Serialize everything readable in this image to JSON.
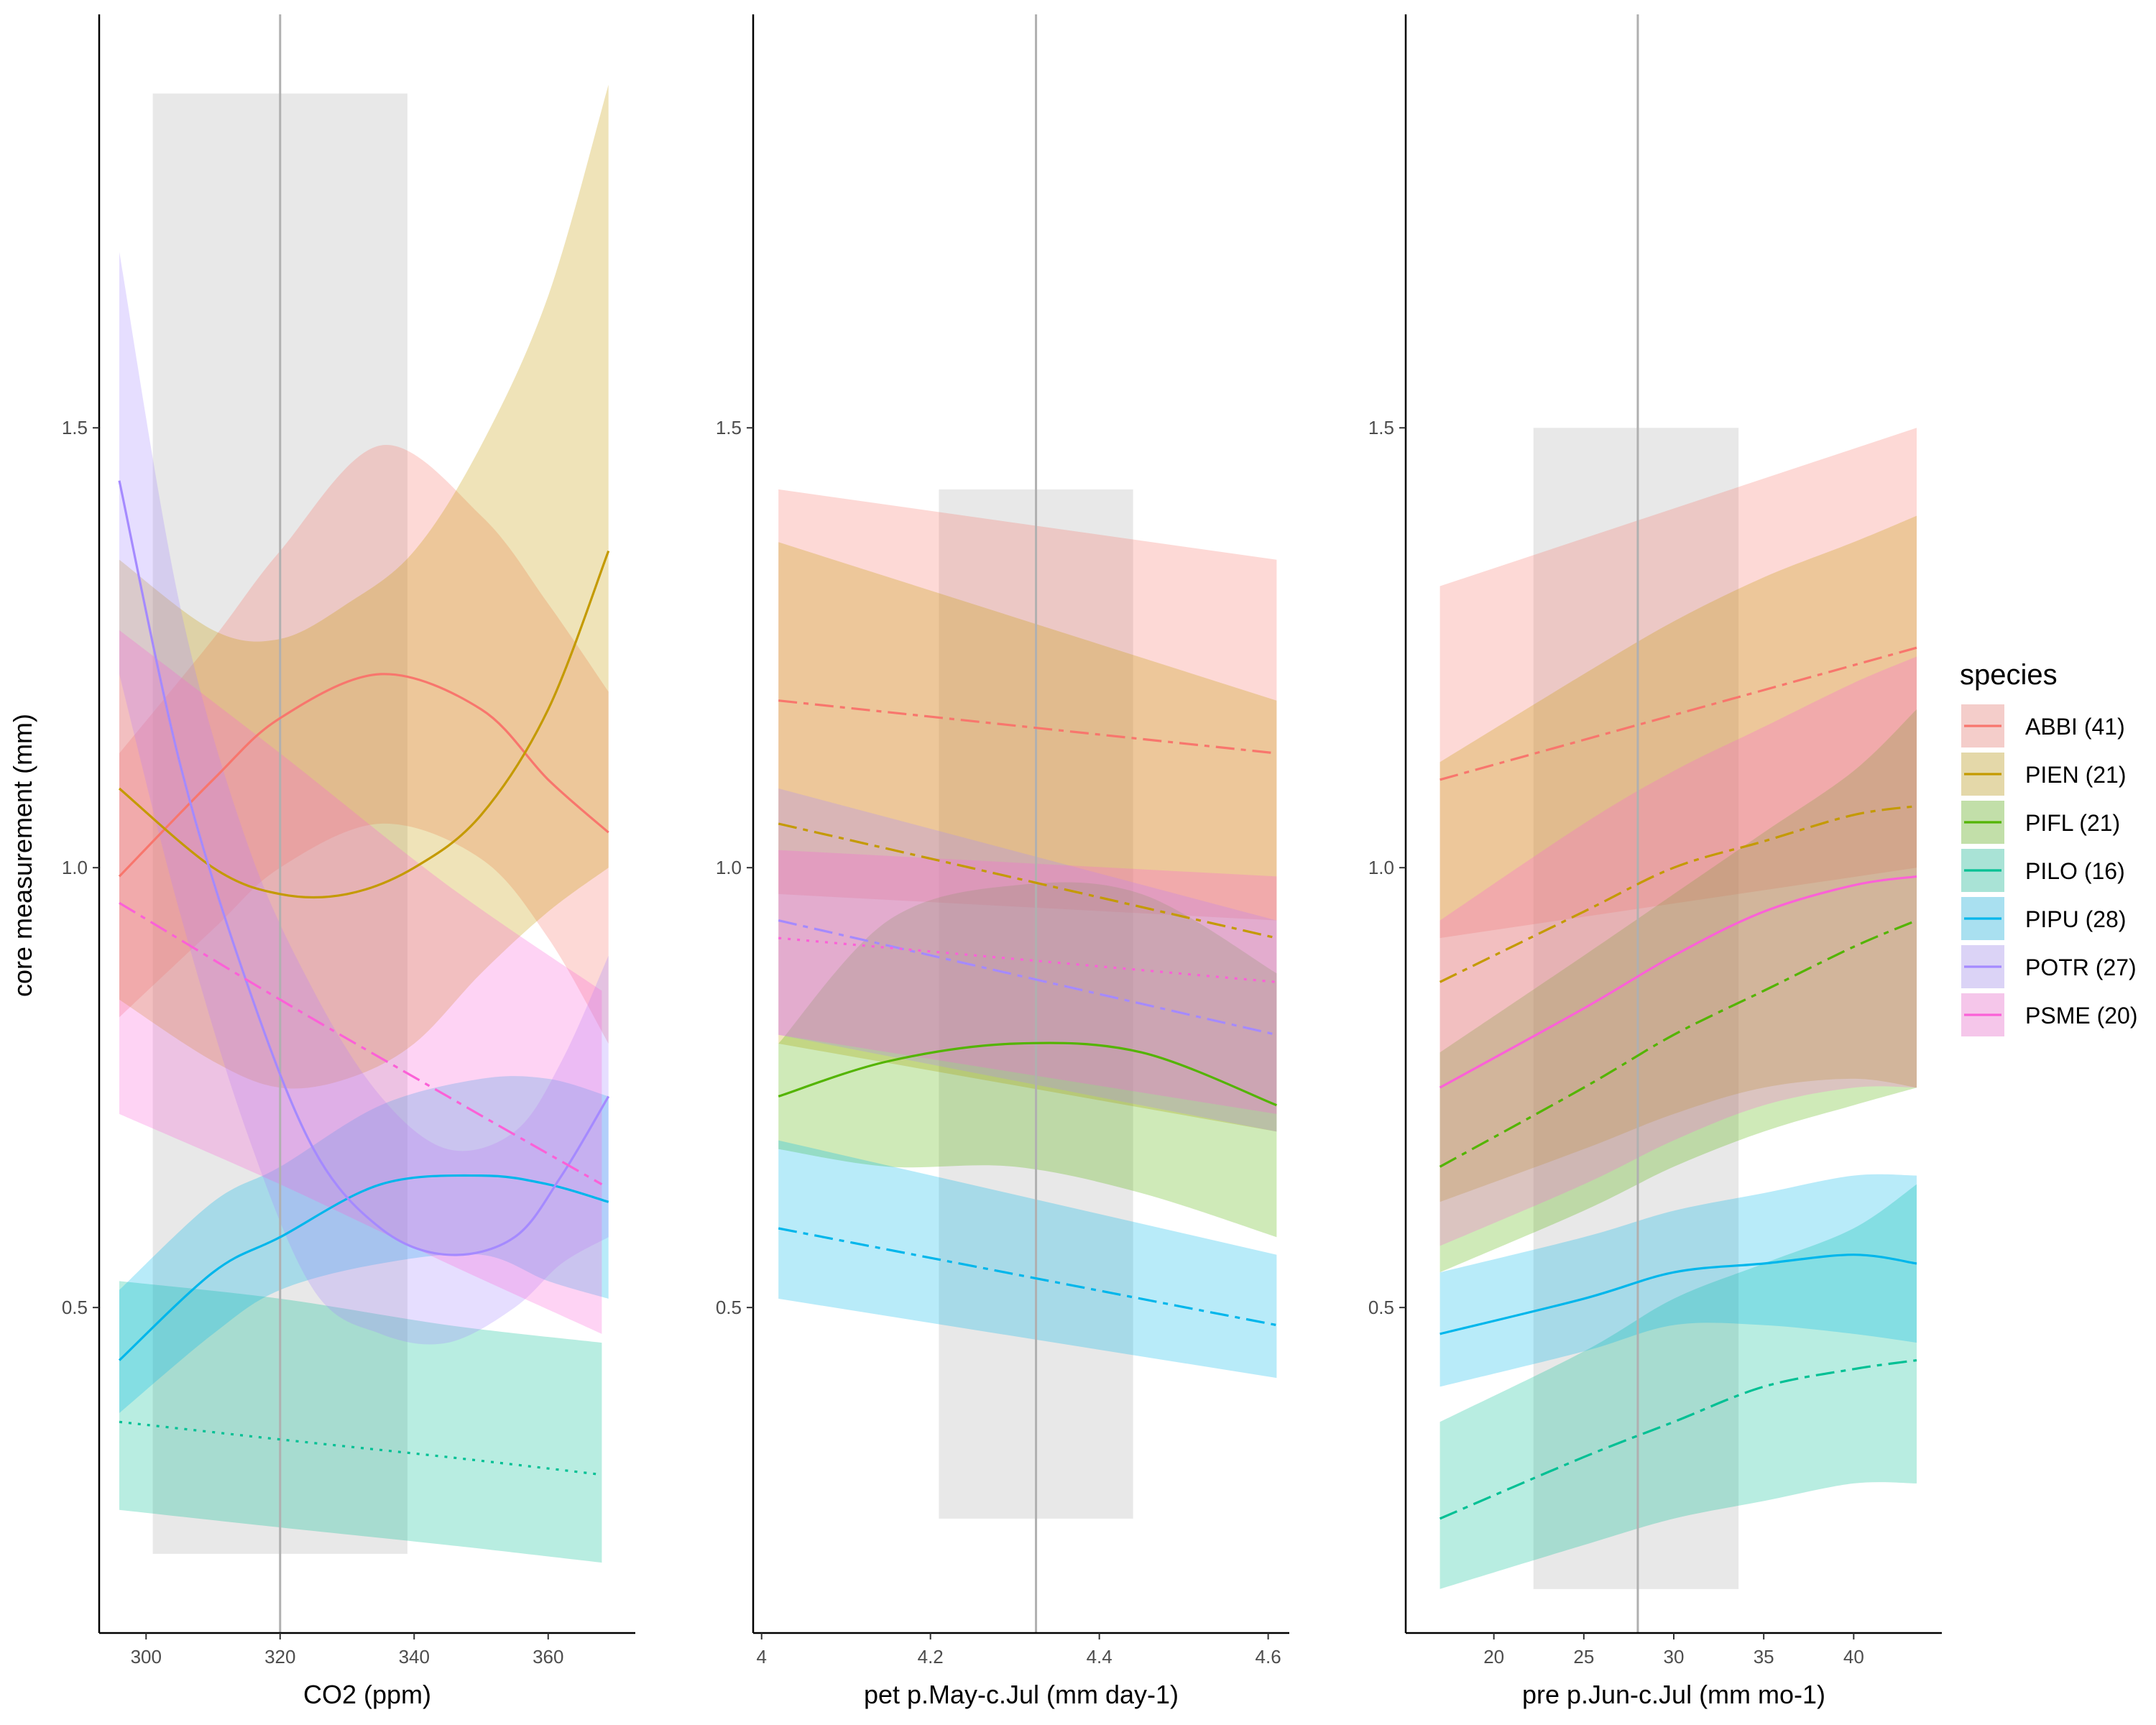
{
  "chart_data": {
    "type": "line",
    "ylabel": "core measurement (mm)",
    "legend": {
      "title": "species",
      "placement": "right",
      "entries": [
        {
          "label": "ABBI (41)",
          "color": "#F8766D"
        },
        {
          "label": "PIEN (21)",
          "color": "#C49A00"
        },
        {
          "label": "PIFL (21)",
          "color": "#53B400"
        },
        {
          "label": "PILO (16)",
          "color": "#00C094"
        },
        {
          "label": "PIPU (28)",
          "color": "#00B6EB"
        },
        {
          "label": "POTR (27)",
          "color": "#A58AFF"
        },
        {
          "label": "PSME (20)",
          "color": "#FB61D7"
        }
      ]
    },
    "panels": [
      {
        "xlabel": "CO2  (ppm)",
        "xticks": [
          300,
          320,
          340,
          360
        ],
        "yticks": [
          0.5,
          1.0,
          1.5
        ],
        "xlim": [
          293,
          373
        ],
        "ylim": [
          0.13,
          1.97
        ],
        "highlight": {
          "x": [
            301,
            339
          ],
          "y": [
            0.22,
            1.88
          ]
        },
        "vline": 320,
        "series": [
          {
            "species": "ABBI (41)",
            "color": "#F8766D",
            "linetype": "solid",
            "x": [
              296,
              310,
              320,
              335,
              350,
              360,
              369
            ],
            "y": [
              0.99,
              1.1,
              1.17,
              1.22,
              1.18,
              1.1,
              1.04
            ],
            "lower": [
              0.83,
              0.93,
              1.0,
              1.05,
              1.01,
              0.92,
              0.8
            ],
            "upper": [
              1.13,
              1.26,
              1.36,
              1.48,
              1.4,
              1.3,
              1.2
            ]
          },
          {
            "species": "PIEN (21)",
            "color": "#C49A00",
            "linetype": "solid",
            "x": [
              296,
              310,
              320,
              330,
              340,
              350,
              360,
              369
            ],
            "y": [
              1.09,
              1.0,
              0.97,
              0.97,
              1.0,
              1.06,
              1.18,
              1.36
            ],
            "lower": [
              0.85,
              0.78,
              0.75,
              0.76,
              0.8,
              0.88,
              0.95,
              1.0
            ],
            "upper": [
              1.35,
              1.27,
              1.26,
              1.3,
              1.36,
              1.48,
              1.65,
              1.89
            ]
          },
          {
            "species": "PILO (16)",
            "color": "#00C094",
            "linetype": "dotted",
            "x": [
              296,
              320,
              345,
              368
            ],
            "y": [
              0.37,
              0.35,
              0.33,
              0.31
            ],
            "lower": [
              0.27,
              0.25,
              0.23,
              0.21
            ],
            "upper": [
              0.53,
              0.51,
              0.48,
              0.46
            ]
          },
          {
            "species": "PIPU (28)",
            "color": "#00B6EB",
            "linetype": "solid",
            "x": [
              296,
              310,
              320,
              335,
              350,
              360,
              369
            ],
            "y": [
              0.44,
              0.54,
              0.58,
              0.64,
              0.65,
              0.64,
              0.62
            ],
            "lower": [
              0.38,
              0.47,
              0.52,
              0.55,
              0.56,
              0.53,
              0.51
            ],
            "upper": [
              0.52,
              0.62,
              0.66,
              0.73,
              0.76,
              0.76,
              0.74
            ]
          },
          {
            "species": "POTR (27)",
            "color": "#A58AFF",
            "linetype": "solid",
            "x": [
              296,
              305,
              315,
              325,
              335,
              345,
              355,
              362,
              369
            ],
            "y": [
              1.44,
              1.12,
              0.87,
              0.68,
              0.59,
              0.56,
              0.58,
              0.65,
              0.74
            ],
            "lower": [
              1.22,
              0.95,
              0.7,
              0.52,
              0.47,
              0.46,
              0.5,
              0.55,
              0.58
            ],
            "upper": [
              1.7,
              1.3,
              1.03,
              0.86,
              0.74,
              0.68,
              0.7,
              0.78,
              0.9
            ]
          },
          {
            "species": "PSME (20)",
            "color": "#FB61D7",
            "linetype": "dashed",
            "x": [
              296,
              320,
              345,
              368
            ],
            "y": [
              0.96,
              0.85,
              0.74,
              0.64
            ],
            "lower": [
              0.72,
              0.64,
              0.55,
              0.47
            ],
            "upper": [
              1.27,
              1.13,
              0.98,
              0.86
            ]
          }
        ]
      },
      {
        "xlabel": "pet p.May-c.Jul (mm day-1)",
        "xticks": [
          4.0,
          4.2,
          4.4,
          4.6
        ],
        "yticks": [
          0.5,
          1.0,
          1.5
        ],
        "xlim": [
          3.99,
          4.625
        ],
        "ylim": [
          0.13,
          1.97
        ],
        "highlight": {
          "x": [
            4.21,
            4.44
          ],
          "y": [
            0.26,
            1.43
          ]
        },
        "vline": 4.325,
        "series": [
          {
            "species": "ABBI (41)",
            "color": "#F8766D",
            "linetype": "dashed",
            "x": [
              4.02,
              4.61
            ],
            "y": [
              1.19,
              1.13
            ],
            "lower": [
              0.97,
              0.94
            ],
            "upper": [
              1.43,
              1.35
            ]
          },
          {
            "species": "PIEN (21)",
            "color": "#C49A00",
            "linetype": "dashed",
            "x": [
              4.02,
              4.61
            ],
            "y": [
              1.05,
              0.92
            ],
            "lower": [
              0.8,
              0.7
            ],
            "upper": [
              1.37,
              1.19
            ]
          },
          {
            "species": "PIFL (21)",
            "color": "#53B400",
            "linetype": "solid",
            "x": [
              4.02,
              4.15,
              4.3,
              4.45,
              4.61
            ],
            "y": [
              0.74,
              0.78,
              0.8,
              0.79,
              0.73
            ],
            "lower": [
              0.68,
              0.66,
              0.66,
              0.63,
              0.58
            ],
            "upper": [
              0.8,
              0.94,
              0.98,
              0.97,
              0.88
            ]
          },
          {
            "species": "PIPU (28)",
            "color": "#00B6EB",
            "linetype": "dashed",
            "x": [
              4.02,
              4.61
            ],
            "y": [
              0.59,
              0.48
            ],
            "lower": [
              0.51,
              0.42
            ],
            "upper": [
              0.69,
              0.56
            ]
          },
          {
            "species": "POTR (27)",
            "color": "#A58AFF",
            "linetype": "dashed",
            "x": [
              4.02,
              4.61
            ],
            "y": [
              0.94,
              0.81
            ],
            "lower": [
              0.81,
              0.7
            ],
            "upper": [
              1.09,
              0.94
            ]
          },
          {
            "species": "PSME (20)",
            "color": "#FB61D7",
            "linetype": "dotted",
            "x": [
              4.02,
              4.61
            ],
            "y": [
              0.92,
              0.87
            ],
            "lower": [
              0.81,
              0.72
            ],
            "upper": [
              1.02,
              0.99
            ]
          }
        ]
      },
      {
        "xlabel": "pre p.Jun-c.Jul (mm mo-1)",
        "xticks": [
          20,
          25,
          30,
          35,
          40
        ],
        "yticks": [
          0.5,
          1.0,
          1.5
        ],
        "xlim": [
          15.1,
          44.9
        ],
        "ylim": [
          0.13,
          1.97
        ],
        "highlight": {
          "x": [
            22.2,
            33.6
          ],
          "y": [
            0.18,
            1.5
          ]
        },
        "vline": 28,
        "series": [
          {
            "species": "ABBI (41)",
            "color": "#F8766D",
            "linetype": "dashed",
            "x": [
              17,
              43.5
            ],
            "y": [
              1.1,
              1.25
            ],
            "lower": [
              0.92,
              1.0
            ],
            "upper": [
              1.32,
              1.5
            ]
          },
          {
            "species": "PIEN (21)",
            "color": "#C49A00",
            "linetype": "dashed",
            "x": [
              17,
              25,
              30,
              35,
              40,
              43.5
            ],
            "y": [
              0.87,
              0.95,
              1.0,
              1.03,
              1.06,
              1.07
            ],
            "lower": [
              0.62,
              0.68,
              0.72,
              0.75,
              0.76,
              0.75
            ],
            "upper": [
              1.12,
              1.22,
              1.28,
              1.33,
              1.37,
              1.4
            ]
          },
          {
            "species": "PIFL (21)",
            "color": "#53B400",
            "linetype": "dashed",
            "x": [
              17,
              25,
              30,
              35,
              40,
              43.5
            ],
            "y": [
              0.66,
              0.75,
              0.81,
              0.86,
              0.91,
              0.94
            ],
            "lower": [
              0.54,
              0.61,
              0.66,
              0.7,
              0.73,
              0.75
            ],
            "upper": [
              0.79,
              0.9,
              0.97,
              1.04,
              1.11,
              1.18
            ]
          },
          {
            "species": "PILO (16)",
            "color": "#00C094",
            "linetype": "dashed",
            "x": [
              17,
              25,
              30,
              35,
              40,
              43.5
            ],
            "y": [
              0.26,
              0.33,
              0.37,
              0.41,
              0.43,
              0.44
            ],
            "lower": [
              0.18,
              0.23,
              0.26,
              0.28,
              0.3,
              0.3
            ],
            "upper": [
              0.37,
              0.45,
              0.51,
              0.55,
              0.59,
              0.64
            ]
          },
          {
            "species": "PIPU (28)",
            "color": "#00B6EB",
            "linetype": "solid",
            "x": [
              17,
              25,
              30,
              35,
              40,
              43.5
            ],
            "y": [
              0.47,
              0.51,
              0.54,
              0.55,
              0.56,
              0.55
            ],
            "lower": [
              0.41,
              0.45,
              0.48,
              0.48,
              0.47,
              0.46
            ],
            "upper": [
              0.54,
              0.58,
              0.61,
              0.63,
              0.65,
              0.65
            ]
          },
          {
            "species": "PSME (20)",
            "color": "#FB61D7",
            "linetype": "solid",
            "x": [
              17,
              25,
              30,
              35,
              40,
              43.5
            ],
            "y": [
              0.75,
              0.84,
              0.9,
              0.95,
              0.98,
              0.99
            ],
            "lower": [
              0.57,
              0.64,
              0.69,
              0.73,
              0.75,
              0.75
            ],
            "upper": [
              0.94,
              1.05,
              1.11,
              1.16,
              1.21,
              1.24
            ]
          }
        ]
      }
    ]
  }
}
